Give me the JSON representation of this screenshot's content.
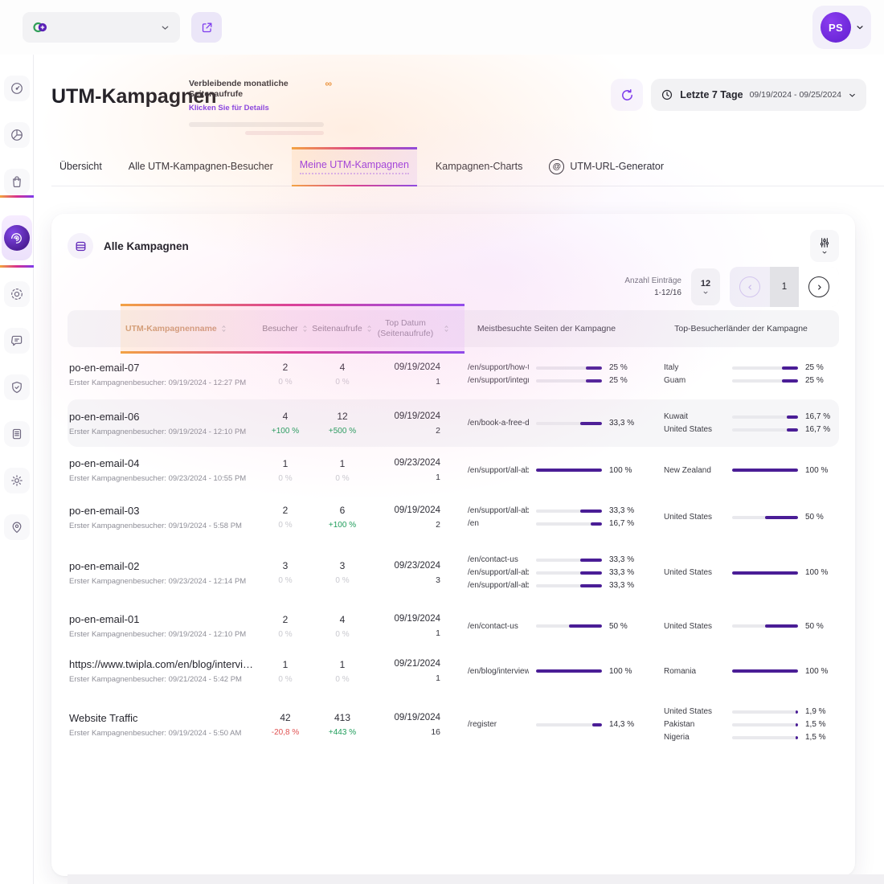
{
  "topbar": {
    "avatar_initials": "PS"
  },
  "header": {
    "title": "UTM-Kampagnen",
    "quota_label": "Verbleibende monatliche Seitenaufrufe",
    "quota_link": "Klicken Sie für Details",
    "quota_value": "∞",
    "date_range": {
      "preset": "Letzte 7 Tage",
      "range": "09/19/2024 - 09/25/2024"
    }
  },
  "sidebar": {
    "items": [
      {
        "id": "dashboard",
        "icon": "speed-icon",
        "active": false
      },
      {
        "id": "statistics",
        "icon": "pie-chart-icon",
        "active": false
      },
      {
        "id": "ecommerce",
        "icon": "shopping-bag-icon",
        "active": false
      },
      {
        "id": "campaigns",
        "icon": "campaigns-icon",
        "active": true
      },
      {
        "id": "recordings",
        "icon": "focus-icon",
        "active": false
      },
      {
        "id": "feedback",
        "icon": "chat-icon",
        "active": false
      },
      {
        "id": "privacy",
        "icon": "shield-check-icon",
        "active": false
      },
      {
        "id": "data",
        "icon": "archive-icon",
        "active": false
      },
      {
        "id": "settings",
        "icon": "gear-icon",
        "active": false
      },
      {
        "id": "location",
        "icon": "map-pin-icon",
        "active": false
      }
    ]
  },
  "tabs": [
    {
      "id": "uebersicht",
      "label": "Übersicht",
      "active": false
    },
    {
      "id": "alle-utm-kampagnen-besucher",
      "label": "Alle UTM-Kampagnen-Besucher",
      "active": false
    },
    {
      "id": "meine-utm-kampagnen",
      "label": "Meine UTM-Kampagnen",
      "active": true
    },
    {
      "id": "kampagnen-charts",
      "label": "Kampagnen-Charts",
      "active": false
    },
    {
      "id": "utm-url-generator",
      "label": "UTM-URL-Generator",
      "active": false,
      "icon": "at-icon"
    }
  ],
  "card": {
    "title": "Alle Kampagnen",
    "entries_label": "Anzahl Einträge",
    "entries_range": "1-12/16",
    "page_size": "12",
    "current_page": "1"
  },
  "table": {
    "columns": [
      {
        "label": "UTM-Kampagnenname",
        "sortable": true
      },
      {
        "label": "Besucher",
        "sortable": true
      },
      {
        "label": "Seitenaufrufe",
        "sortable": true
      },
      {
        "label": "Top Datum (Seitenaufrufe)",
        "sortable": true
      },
      {
        "label": "Meistbesuchte Seiten der Kampagne",
        "sortable": false
      },
      {
        "label": "Top-Besucherländer der Kampagne",
        "sortable": false
      }
    ],
    "rows": [
      {
        "name": "po-en-email-07",
        "first_visitor": "Erster Kampagnenbesucher: 09/19/2024 - 12:27 PM",
        "visitors": {
          "value": "2",
          "change": "0 %",
          "trend": "zero"
        },
        "pageviews": {
          "value": "4",
          "change": "0 %",
          "trend": "zero"
        },
        "top_date": {
          "date": "09/19/2024",
          "count": "1"
        },
        "pages": [
          {
            "label": "/en/support/how-t...",
            "pct": "25 %",
            "value": 25
          },
          {
            "label": "/en/support/integr...",
            "pct": "25 %",
            "value": 25
          }
        ],
        "countries": [
          {
            "label": "Italy",
            "pct": "25 %",
            "value": 25
          },
          {
            "label": "Guam",
            "pct": "25 %",
            "value": 25
          }
        ],
        "highlighted": false
      },
      {
        "name": "po-en-email-06",
        "first_visitor": "Erster Kampagnenbesucher: 09/19/2024 - 12:10 PM",
        "visitors": {
          "value": "4",
          "change": "+100 %",
          "trend": "up"
        },
        "pageviews": {
          "value": "12",
          "change": "+500 %",
          "trend": "up"
        },
        "top_date": {
          "date": "09/19/2024",
          "count": "2"
        },
        "pages": [
          {
            "label": "/en/book-a-free-d...",
            "pct": "33,3 %",
            "value": 33.3
          }
        ],
        "countries": [
          {
            "label": "Kuwait",
            "pct": "16,7 %",
            "value": 16.7
          },
          {
            "label": "United States",
            "pct": "16,7 %",
            "value": 16.7
          }
        ],
        "highlighted": true
      },
      {
        "name": "po-en-email-04",
        "first_visitor": "Erster Kampagnenbesucher: 09/23/2024 - 10:55 PM",
        "visitors": {
          "value": "1",
          "change": "0 %",
          "trend": "zero"
        },
        "pageviews": {
          "value": "1",
          "change": "0 %",
          "trend": "zero"
        },
        "top_date": {
          "date": "09/23/2024",
          "count": "1"
        },
        "pages": [
          {
            "label": "/en/support/all-ab...",
            "pct": "100 %",
            "value": 100
          }
        ],
        "countries": [
          {
            "label": "New Zealand",
            "pct": "100 %",
            "value": 100
          }
        ],
        "highlighted": false
      },
      {
        "name": "po-en-email-03",
        "first_visitor": "Erster Kampagnenbesucher: 09/19/2024 - 5:58 PM",
        "visitors": {
          "value": "2",
          "change": "0 %",
          "trend": "zero"
        },
        "pageviews": {
          "value": "6",
          "change": "+100 %",
          "trend": "up"
        },
        "top_date": {
          "date": "09/19/2024",
          "count": "2"
        },
        "pages": [
          {
            "label": "/en/support/all-ab...",
            "pct": "33,3 %",
            "value": 33.3
          },
          {
            "label": "/en",
            "pct": "16,7 %",
            "value": 16.7
          }
        ],
        "countries": [
          {
            "label": "United States",
            "pct": "50 %",
            "value": 50
          }
        ],
        "highlighted": false
      },
      {
        "name": "po-en-email-02",
        "first_visitor": "Erster Kampagnenbesucher: 09/23/2024 - 12:14 PM",
        "visitors": {
          "value": "3",
          "change": "0 %",
          "trend": "zero"
        },
        "pageviews": {
          "value": "3",
          "change": "0 %",
          "trend": "zero"
        },
        "top_date": {
          "date": "09/23/2024",
          "count": "3"
        },
        "pages": [
          {
            "label": "/en/contact-us",
            "pct": "33,3 %",
            "value": 33.3
          },
          {
            "label": "/en/support/all-ab...",
            "pct": "33,3 %",
            "value": 33.3
          },
          {
            "label": "/en/support/all-ab...",
            "pct": "33,3 %",
            "value": 33.3
          }
        ],
        "countries": [
          {
            "label": "United States",
            "pct": "100 %",
            "value": 100
          }
        ],
        "highlighted": false
      },
      {
        "name": "po-en-email-01",
        "first_visitor": "Erster Kampagnenbesucher: 09/19/2024 - 12:10 PM",
        "visitors": {
          "value": "2",
          "change": "0 %",
          "trend": "zero"
        },
        "pageviews": {
          "value": "4",
          "change": "0 %",
          "trend": "zero"
        },
        "top_date": {
          "date": "09/19/2024",
          "count": "1"
        },
        "pages": [
          {
            "label": "/en/contact-us",
            "pct": "50 %",
            "value": 50
          }
        ],
        "countries": [
          {
            "label": "United States",
            "pct": "50 %",
            "value": 50
          }
        ],
        "highlighted": false
      },
      {
        "name": "https://www.twipla.com/en/blog/interview-tony-mo...",
        "first_visitor": "Erster Kampagnenbesucher: 09/21/2024 - 5:42 PM",
        "visitors": {
          "value": "1",
          "change": "0 %",
          "trend": "zero"
        },
        "pageviews": {
          "value": "1",
          "change": "0 %",
          "trend": "zero"
        },
        "top_date": {
          "date": "09/21/2024",
          "count": "1"
        },
        "pages": [
          {
            "label": "/en/blog/interview...",
            "pct": "100 %",
            "value": 100
          }
        ],
        "countries": [
          {
            "label": "Romania",
            "pct": "100 %",
            "value": 100
          }
        ],
        "highlighted": false
      },
      {
        "name": "Website Traffic",
        "first_visitor": "Erster Kampagnenbesucher: 09/19/2024 - 5:50 AM",
        "visitors": {
          "value": "42",
          "change": "-20,8 %",
          "trend": "down"
        },
        "pageviews": {
          "value": "413",
          "change": "+443 %",
          "trend": "up"
        },
        "top_date": {
          "date": "09/19/2024",
          "count": "16"
        },
        "pages": [
          {
            "label": "/register",
            "pct": "14,3 %",
            "value": 14.3
          }
        ],
        "countries": [
          {
            "label": "United States",
            "pct": "1,9 %",
            "value": 1.9
          },
          {
            "label": "Pakistan",
            "pct": "1,5 %",
            "value": 1.5
          },
          {
            "label": "Nigeria",
            "pct": "1,5 %",
            "value": 1.5
          }
        ],
        "highlighted": false
      }
    ]
  },
  "colors": {
    "accent": "#7c3aed",
    "bar_fill": "#4a1d96",
    "positive": "#1f9d5b",
    "negative": "#e05252",
    "avatar_bg": "#6d28d9",
    "warn_orange": "#e8923a"
  }
}
